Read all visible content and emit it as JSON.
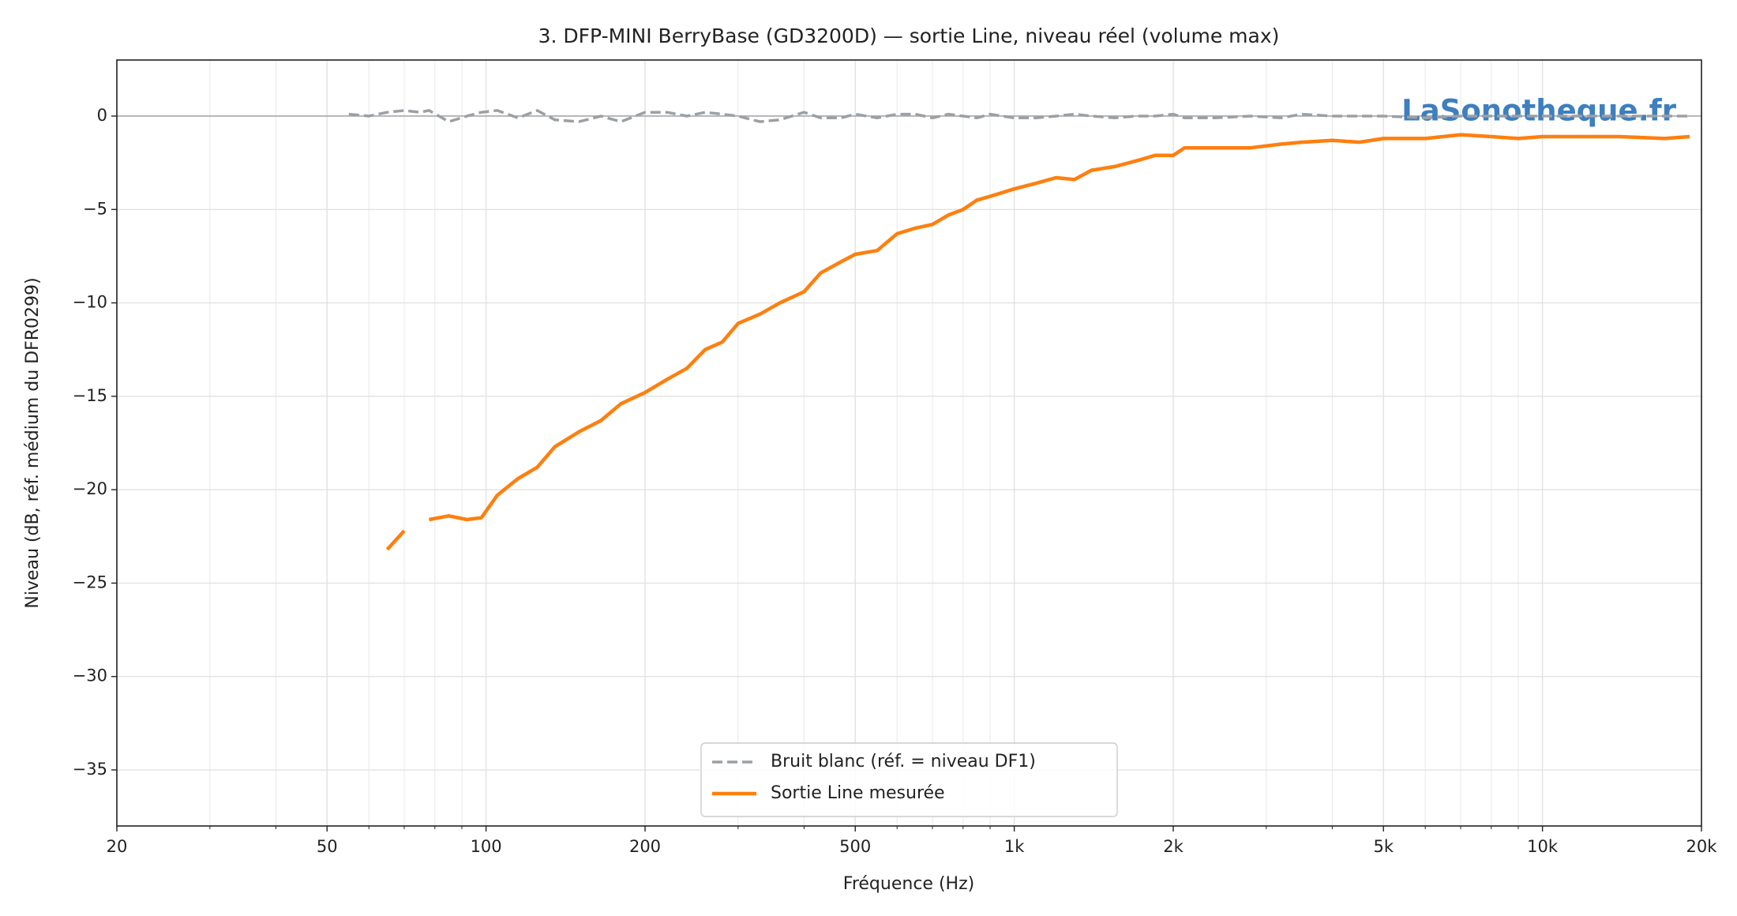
{
  "chart_data": {
    "type": "line",
    "title": "3. DFP-MINI BerryBase (GD3200D)  —  sortie Line, niveau réel (volume max)",
    "xlabel": "Fréquence (Hz)",
    "ylabel": "Niveau (dB, réf. médium du DFR0299)",
    "watermark": "LaSonotheque.fr",
    "x": [
      55,
      60,
      65,
      70,
      75,
      78,
      85,
      92,
      98,
      105,
      115,
      125,
      135,
      150,
      165,
      180,
      200,
      220,
      240,
      260,
      280,
      300,
      330,
      360,
      400,
      430,
      470,
      500,
      550,
      600,
      650,
      700,
      750,
      800,
      850,
      900,
      1000,
      1100,
      1200,
      1300,
      1400,
      1550,
      1700,
      1850,
      2000,
      2100,
      2400,
      2800,
      3200,
      3500,
      4000,
      4500,
      5000,
      6000,
      7000,
      8000,
      9000,
      10000,
      12000,
      14000,
      17000,
      19000
    ],
    "series": [
      {
        "name": "Bruit blanc (réf. = niveau DF1)",
        "color": "#9ba0a5",
        "dash": true,
        "values": [
          0.1,
          0.0,
          0.2,
          0.3,
          0.2,
          0.3,
          -0.3,
          0.0,
          0.2,
          0.3,
          -0.1,
          0.3,
          -0.2,
          -0.3,
          0.0,
          -0.3,
          0.2,
          0.2,
          0.0,
          0.2,
          0.1,
          0.0,
          -0.3,
          -0.2,
          0.2,
          -0.1,
          -0.1,
          0.1,
          -0.1,
          0.1,
          0.1,
          -0.1,
          0.1,
          0.0,
          -0.1,
          0.1,
          -0.1,
          -0.1,
          0.0,
          0.1,
          0.0,
          -0.1,
          0.0,
          0.0,
          0.1,
          -0.1,
          -0.1,
          0.0,
          -0.1,
          0.1,
          0.0,
          0.0,
          0.0,
          -0.1,
          0.0,
          0.0,
          0.0,
          0.0,
          0.0,
          0.0,
          0.0,
          0.0
        ]
      },
      {
        "name": "Sortie Line mesurée",
        "color": "#ff7f0e",
        "dash": false,
        "values": [
          null,
          null,
          -23.2,
          -22.2,
          null,
          -21.6,
          -21.4,
          -21.6,
          -21.5,
          -20.3,
          -19.4,
          -18.8,
          -17.7,
          -16.9,
          -16.3,
          -15.4,
          -14.8,
          -14.1,
          -13.5,
          -12.5,
          -12.1,
          -11.1,
          -10.6,
          -10.0,
          -9.4,
          -8.4,
          -7.8,
          -7.4,
          -7.2,
          -6.3,
          -6.0,
          -5.8,
          -5.3,
          -5.0,
          -4.5,
          -4.3,
          -3.9,
          -3.6,
          -3.3,
          -3.4,
          -2.9,
          -2.7,
          -2.4,
          -2.1,
          -2.1,
          -1.7,
          -1.7,
          -1.7,
          -1.5,
          -1.4,
          -1.3,
          -1.4,
          -1.2,
          -1.2,
          -1.0,
          -1.1,
          -1.2,
          -1.1,
          -1.1,
          -1.1,
          -1.2,
          -1.1
        ]
      }
    ],
    "xscale": "log",
    "xlim": [
      20,
      20000
    ],
    "xticks": [
      20,
      50,
      100,
      200,
      500,
      {
        "value": 1000,
        "label": "1k"
      },
      {
        "value": 2000,
        "label": "2k"
      },
      {
        "value": 5000,
        "label": "5k"
      },
      {
        "value": 10000,
        "label": "10k"
      },
      {
        "value": 20000,
        "label": "20k"
      }
    ],
    "xminor_ticks": [
      30,
      40,
      60,
      70,
      80,
      90,
      300,
      400,
      600,
      700,
      800,
      900,
      3000,
      4000,
      6000,
      7000,
      8000,
      9000
    ],
    "ylim": [
      -38,
      3
    ],
    "yticks": [
      {
        "value": -35,
        "label": "−35"
      },
      {
        "value": -30,
        "label": "−30"
      },
      {
        "value": -25,
        "label": "−25"
      },
      {
        "value": -20,
        "label": "−20"
      },
      {
        "value": -15,
        "label": "−15"
      },
      {
        "value": -10,
        "label": "−10"
      },
      {
        "value": -5,
        "label": "−5"
      },
      0
    ],
    "reference_line": 0,
    "grid": true,
    "legend": "lower center"
  }
}
